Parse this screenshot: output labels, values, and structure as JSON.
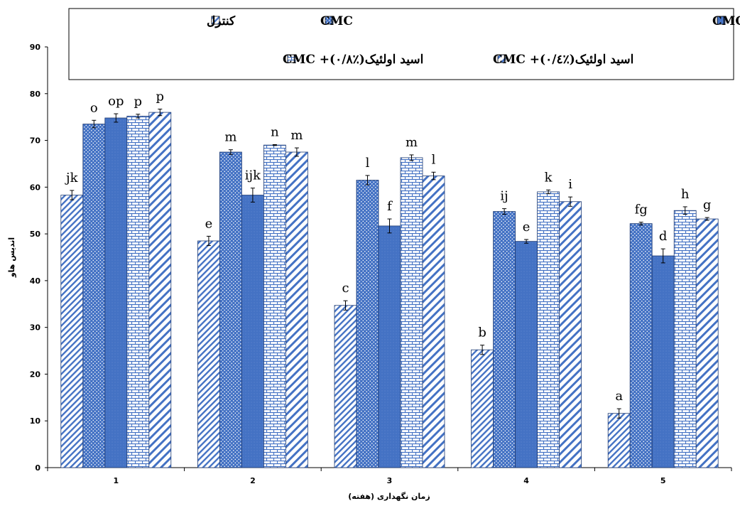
{
  "chart_data": {
    "type": "bar",
    "xlabel": "زمان نگهداری (هفته)",
    "ylabel": "اندیس هاو",
    "ylim": [
      0,
      90
    ],
    "yticks": [
      0,
      10,
      20,
      30,
      40,
      50,
      60,
      70,
      80,
      90
    ],
    "categories": [
      "1",
      "2",
      "3",
      "4",
      "5"
    ],
    "grid": false,
    "legend_position": "top",
    "series": [
      {
        "name": "کنترل",
        "pattern": "diagonal-dense",
        "color": "#4472c4",
        "values": [
          58.3,
          48.5,
          34.7,
          25.2,
          11.6
        ],
        "errors": [
          1.0,
          1.0,
          1.0,
          1.0,
          1.0
        ],
        "letters": [
          "jk",
          "e",
          "c",
          "b",
          "a"
        ]
      },
      {
        "name": "CMC",
        "pattern": "dots",
        "color": "#4472c4",
        "values": [
          73.5,
          67.5,
          61.5,
          54.8,
          52.2
        ],
        "errors": [
          0.8,
          0.5,
          1.0,
          0.6,
          0.3
        ],
        "letters": [
          "o",
          "m",
          "l",
          "ij",
          "fg"
        ]
      },
      {
        "name": "ترکیبات ضدمیکروبی+ CMC",
        "pattern": "solid",
        "color": "#4472c4",
        "values": [
          74.8,
          58.3,
          51.7,
          48.4,
          45.3
        ],
        "errors": [
          0.9,
          1.5,
          1.5,
          0.4,
          1.5
        ],
        "letters": [
          "op",
          "ijk",
          "f",
          "e",
          "d"
        ]
      },
      {
        "name": "اسید اولئیک(٪۰/۸)+ CMC",
        "pattern": "brick",
        "color": "#4472c4",
        "values": [
          75.2,
          69.0,
          66.3,
          59.0,
          55.0
        ],
        "errors": [
          0.4,
          0.1,
          0.6,
          0.4,
          0.8
        ],
        "letters": [
          "p",
          "n",
          "m",
          "k",
          "h"
        ]
      },
      {
        "name": "اسید اولئیک(٪۰/٤)+ CMC",
        "pattern": "diagonal-wide",
        "color": "#4472c4",
        "values": [
          76.0,
          67.5,
          62.4,
          56.9,
          53.2
        ],
        "errors": [
          0.7,
          0.9,
          0.8,
          1.0,
          0.3
        ],
        "letters": [
          "p",
          "m",
          "l",
          "i",
          "g"
        ]
      }
    ]
  }
}
